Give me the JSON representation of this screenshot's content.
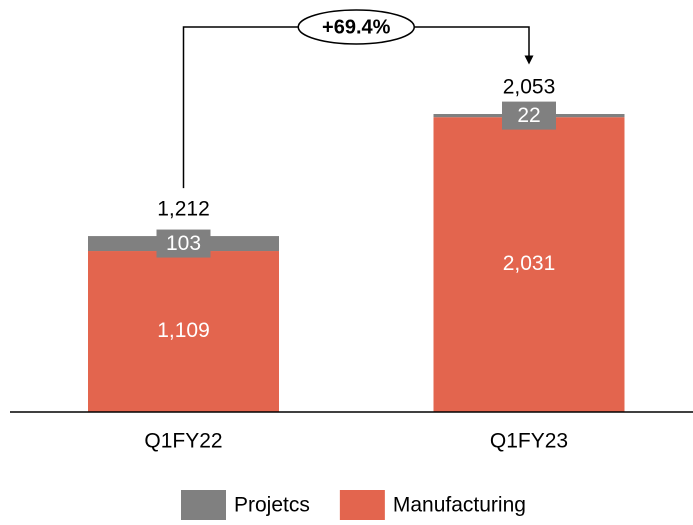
{
  "chart_data": {
    "type": "stacked_bar",
    "categories": [
      "Q1FY22",
      "Q1FY23"
    ],
    "series": [
      {
        "name": "Manufacturing",
        "color": "#e3654e",
        "values": [
          1109,
          2031
        ],
        "value_labels": [
          "1,109",
          "2,031"
        ]
      },
      {
        "name": "Projetcs",
        "color": "#808080",
        "values": [
          103,
          22
        ]
      }
    ],
    "totals": [
      1212,
      2053
    ],
    "total_labels": [
      "1,212",
      "2,053"
    ],
    "annotation": "+69.4%",
    "legend_order": [
      1,
      0
    ]
  }
}
